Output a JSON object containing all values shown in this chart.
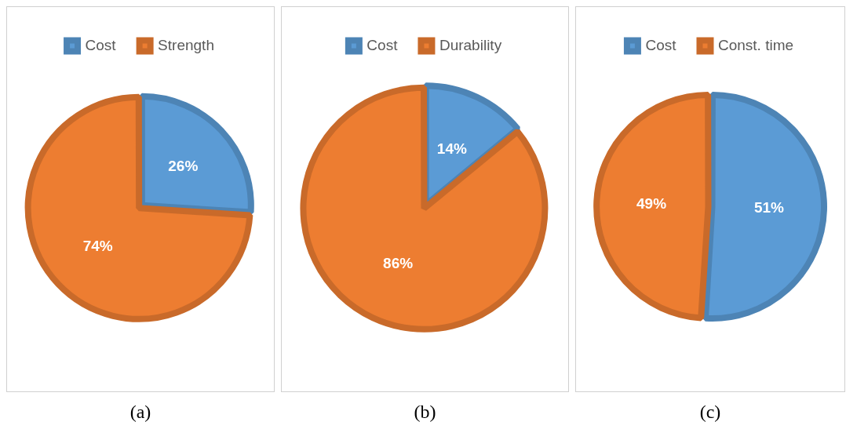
{
  "chart_data": [
    {
      "type": "pie",
      "categories": [
        "Cost",
        "Strength"
      ],
      "values": [
        26,
        74
      ],
      "colors": [
        "#5b9bd5",
        "#ed7d31"
      ],
      "value_labels": [
        "26%",
        "74%"
      ],
      "legend": "top",
      "annotations": [
        "(a)"
      ]
    },
    {
      "type": "pie",
      "categories": [
        "Cost",
        "Durability"
      ],
      "values": [
        14,
        86
      ],
      "colors": [
        "#5b9bd5",
        "#ed7d31"
      ],
      "value_labels": [
        "14%",
        "86%"
      ],
      "legend": "top",
      "annotations": [
        "(b)"
      ]
    },
    {
      "type": "pie",
      "categories": [
        "Cost",
        "Const. time"
      ],
      "values": [
        51,
        49
      ],
      "colors": [
        "#5b9bd5",
        "#ed7d31"
      ],
      "value_labels": [
        "51%",
        "49%"
      ],
      "legend": "top",
      "annotations": [
        "(c)"
      ]
    }
  ]
}
